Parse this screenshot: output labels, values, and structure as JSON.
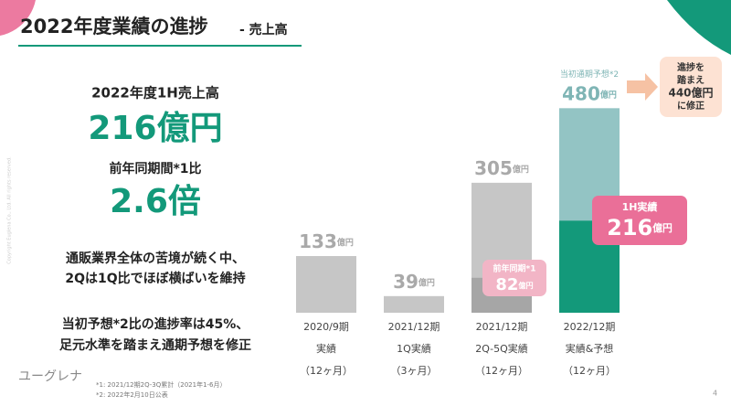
{
  "header": {
    "title": "2022年度業績の進捗",
    "subtitle": "- 売上高"
  },
  "summary": {
    "label1": "2022年度1H売上高",
    "value1": "216億円",
    "label2": "前年同期間*1比",
    "value2": "2.6倍",
    "text1": [
      "通販業界全体の苦境が続く中、",
      "2Qは1Q比でほぼ横ばいを維持"
    ],
    "text2": [
      "当初予想*2比の進捗率は45%、",
      "足元水準を踏まえ通期予想を修正"
    ]
  },
  "chart_data": {
    "type": "bar",
    "unit": "億円",
    "categories": [
      [
        "2020/9期",
        "実績",
        "（12ヶ月）"
      ],
      [
        "2021/12期",
        "1Q実績",
        "（3ヶ月）"
      ],
      [
        "2021/12期",
        "2Q-5Q実績",
        "（12ヶ月）"
      ],
      [
        "2022/12期",
        "実績&予想",
        "（12ヶ月）"
      ]
    ],
    "values": [
      133,
      39,
      305,
      480
    ],
    "colors": [
      "#c6c6c6",
      "#c6c6c6",
      "#c6c6c6",
      "#93c4c4"
    ],
    "value_label_colors": [
      "#a9a9a9",
      "#a9a9a9",
      "#a9a9a9",
      "#7fb5b5"
    ],
    "top_labels": [
      null,
      null,
      null,
      "当初通期予想*2"
    ],
    "overlay": {
      "values": [
        null,
        null,
        82,
        216
      ],
      "colors": [
        null,
        null,
        "#a6a6a6",
        "#13997a"
      ],
      "labels": [
        null,
        null,
        "前年同期*1",
        "1H実績"
      ],
      "callout_colors": [
        null,
        null,
        "#f2b5c6",
        "#ea6f98"
      ]
    },
    "revision": [
      "進捗を",
      "踏まえ",
      "440億円",
      "に修正"
    ]
  },
  "footnotes": [
    "*1:  2021/12期2Q-3Q累計（2021年1-6月）",
    "*2:  2022年2月10日公表"
  ],
  "logo": "ユーグレナ",
  "page_number": "4",
  "copyright": "Copyright Euglena Co., Ltd. All rights reserved."
}
